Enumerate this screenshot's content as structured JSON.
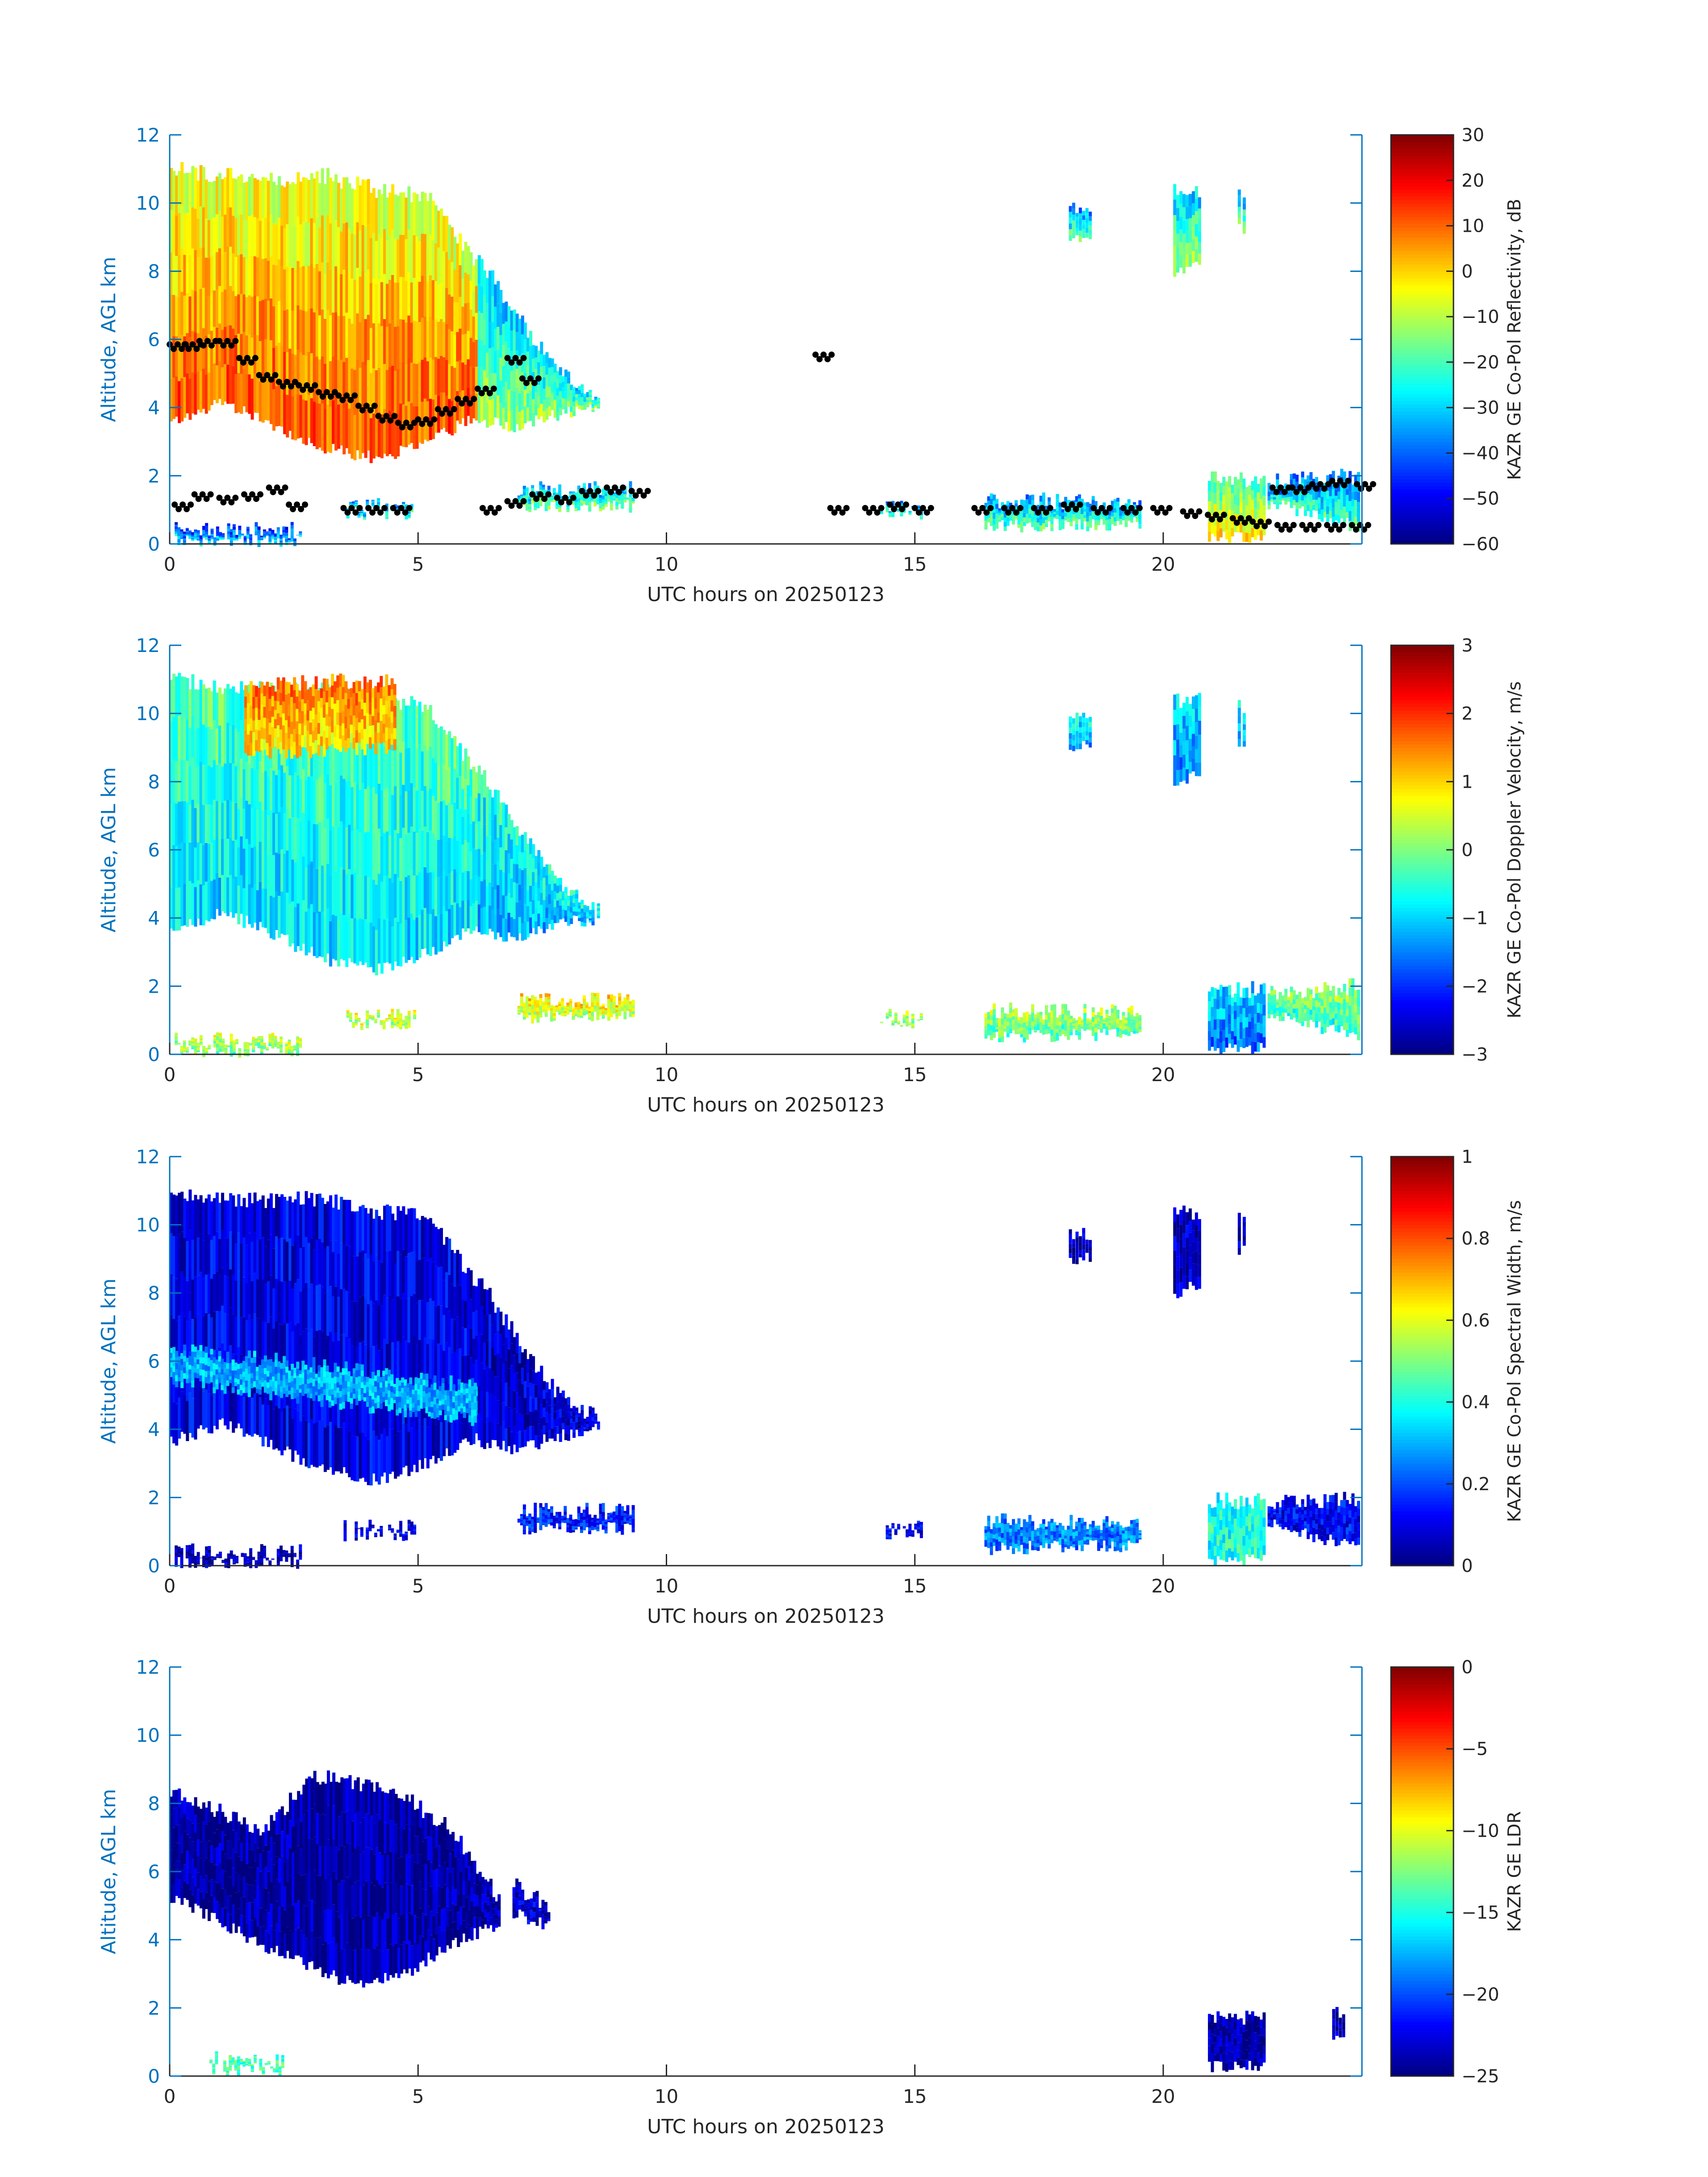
{
  "figure": {
    "date_label": "UTC hours on 20250123"
  },
  "colors": {
    "axis_blue": "#0072bd",
    "text_black": "#262626",
    "melting_layer_marker": "#000000"
  },
  "chart_data": [
    {
      "type": "heatmap",
      "name": "reflectivity",
      "xlabel": "UTC hours on 20250123",
      "ylabel": "Altitude, AGL km",
      "xlim": [
        0,
        24
      ],
      "ylim": [
        0,
        12
      ],
      "xticks": [
        0,
        5,
        10,
        15,
        20
      ],
      "yticks": [
        0,
        2,
        4,
        6,
        8,
        10,
        12
      ],
      "colorbar": {
        "label": "KAZR GE Co-Pol Reflectivity, dB",
        "range": [
          -60,
          30
        ],
        "ticks": [
          -60,
          -50,
          -40,
          -30,
          -20,
          -10,
          0,
          10,
          20,
          30
        ],
        "colormap": "jet"
      },
      "echoes": [
        {
          "t0": 0,
          "t1": 6.2,
          "base": [
            3.6,
            4.2,
            3.5,
            2.8,
            2.5,
            3.0,
            3.8
          ],
          "top": [
            11.0,
            10.8,
            10.7,
            10.8,
            10.4,
            10.2,
            8.2
          ],
          "value": 2
        },
        {
          "t0": 6.2,
          "t1": 8.6,
          "base": [
            3.6,
            3.4,
            3.8,
            4.0
          ],
          "top": [
            8.4,
            6.6,
            5.0,
            4.3
          ],
          "value": -22
        },
        {
          "t0": 18.1,
          "t1": 18.5,
          "base": [
            9.0,
            9.0
          ],
          "top": [
            9.8,
            9.8
          ],
          "value": -28
        },
        {
          "t0": 20.2,
          "t1": 20.7,
          "base": [
            8.0,
            8.2
          ],
          "top": [
            10.4,
            10.4
          ],
          "value": -22
        },
        {
          "t0": 21.5,
          "t1": 21.6,
          "base": [
            9.2,
            9.2
          ],
          "top": [
            10.2,
            10.2
          ],
          "value": -25
        },
        {
          "t0": 0.1,
          "t1": 2.6,
          "base": [
            0.1,
            0.1
          ],
          "top": [
            0.4,
            0.4
          ],
          "value": -38
        },
        {
          "t0": 3.5,
          "t1": 4.9,
          "base": [
            0.9,
            0.9
          ],
          "top": [
            1.1,
            1.1
          ],
          "value": -30
        },
        {
          "t0": 7.0,
          "t1": 9.3,
          "base": [
            1.1,
            1.1
          ],
          "top": [
            1.6,
            1.6
          ],
          "value": -25
        },
        {
          "t0": 14.3,
          "t1": 15.1,
          "base": [
            0.9,
            0.9
          ],
          "top": [
            1.1,
            1.1
          ],
          "value": -28
        },
        {
          "t0": 16.4,
          "t1": 19.5,
          "base": [
            0.5,
            0.6
          ],
          "top": [
            1.3,
            1.2
          ],
          "value": -28
        },
        {
          "t0": 20.9,
          "t1": 22.0,
          "base": [
            0.2,
            0.2
          ],
          "top": [
            1.9,
            1.9
          ],
          "value": -12
        },
        {
          "t0": 22.1,
          "t1": 23.9,
          "base": [
            1.2,
            0.5
          ],
          "top": [
            1.8,
            2.0
          ],
          "value": -30
        }
      ],
      "markers": {
        "description_free": true,
        "x": [
          0.0,
          0.3,
          0.6,
          1.0,
          1.4,
          1.8,
          2.2,
          2.6,
          3.0,
          3.4,
          3.8,
          4.2,
          4.6,
          5.0,
          5.4,
          5.8,
          6.2,
          6.8,
          7.1,
          0.1,
          0.5,
          1.0,
          1.5,
          2.0,
          2.4,
          3.5,
          4.0,
          4.5,
          6.3,
          6.8,
          7.3,
          7.8,
          8.3,
          8.8,
          9.3,
          13.0,
          13.3,
          14.0,
          14.5,
          15.0,
          16.2,
          16.8,
          17.4,
          18.0,
          18.6,
          19.2,
          19.8,
          20.4,
          20.9,
          21.4,
          21.8,
          22.3,
          22.8,
          23.3,
          23.8,
          22.2,
          22.6,
          23.0,
          23.4,
          23.9
        ],
        "y": [
          5.8,
          5.8,
          5.9,
          5.9,
          5.4,
          4.9,
          4.7,
          4.6,
          4.4,
          4.3,
          4.0,
          3.7,
          3.5,
          3.6,
          3.9,
          4.2,
          4.5,
          5.4,
          4.8,
          1.1,
          1.4,
          1.3,
          1.4,
          1.6,
          1.1,
          1.0,
          1.0,
          1.0,
          1.0,
          1.2,
          1.4,
          1.3,
          1.5,
          1.6,
          1.5,
          5.5,
          1.0,
          1.0,
          1.1,
          1.0,
          1.0,
          1.0,
          1.0,
          1.1,
          1.0,
          1.0,
          1.0,
          0.9,
          0.8,
          0.7,
          0.6,
          0.5,
          0.5,
          0.5,
          0.5,
          1.6,
          1.6,
          1.7,
          1.8,
          1.7
        ]
      }
    },
    {
      "type": "heatmap",
      "name": "doppler-velocity",
      "xlabel": "UTC hours on 20250123",
      "ylabel": "Altitude, AGL km",
      "xlim": [
        0,
        24
      ],
      "ylim": [
        0,
        12
      ],
      "xticks": [
        0,
        5,
        10,
        15,
        20
      ],
      "yticks": [
        0,
        2,
        4,
        6,
        8,
        10,
        12
      ],
      "colorbar": {
        "label": "KAZR GE Co-Pol Doppler Velocity, m/s",
        "range": [
          -3,
          3
        ],
        "ticks": [
          -3,
          -2,
          -1,
          0,
          1,
          2,
          3
        ],
        "colormap": "jet"
      },
      "echoes": [
        {
          "t0": 0,
          "t1": 6.2,
          "base": [
            3.6,
            4.2,
            3.5,
            2.8,
            2.5,
            3.0,
            3.8
          ],
          "top": [
            11.0,
            10.8,
            10.7,
            10.8,
            10.4,
            10.2,
            8.2
          ],
          "value": -0.6
        },
        {
          "t0": 1.5,
          "t1": 4.5,
          "base": [
            8.8,
            9.0
          ],
          "top": [
            10.8,
            11.0
          ],
          "value": 1.2
        },
        {
          "t0": 6.2,
          "t1": 8.6,
          "base": [
            3.6,
            3.4,
            3.8,
            4.0
          ],
          "top": [
            8.4,
            6.6,
            5.0,
            4.3
          ],
          "value": -0.9
        },
        {
          "t0": 18.1,
          "t1": 18.5,
          "base": [
            9.0,
            9.0
          ],
          "top": [
            9.8,
            9.8
          ],
          "value": -1.0
        },
        {
          "t0": 20.2,
          "t1": 20.7,
          "base": [
            8.0,
            8.2
          ],
          "top": [
            10.4,
            10.4
          ],
          "value": -1.2
        },
        {
          "t0": 21.5,
          "t1": 21.6,
          "base": [
            9.2,
            9.2
          ],
          "top": [
            10.2,
            10.2
          ],
          "value": -1.0
        },
        {
          "t0": 0.1,
          "t1": 2.6,
          "base": [
            0.1,
            0.1
          ],
          "top": [
            0.4,
            0.4
          ],
          "value": 0.2
        },
        {
          "t0": 3.5,
          "t1": 4.9,
          "base": [
            0.9,
            0.9
          ],
          "top": [
            1.1,
            1.1
          ],
          "value": 0.4
        },
        {
          "t0": 7.0,
          "t1": 9.3,
          "base": [
            1.1,
            1.1
          ],
          "top": [
            1.6,
            1.6
          ],
          "value": 0.6
        },
        {
          "t0": 14.3,
          "t1": 15.1,
          "base": [
            0.9,
            0.9
          ],
          "top": [
            1.1,
            1.1
          ],
          "value": 0.2
        },
        {
          "t0": 16.4,
          "t1": 19.5,
          "base": [
            0.5,
            0.6
          ],
          "top": [
            1.3,
            1.2
          ],
          "value": 0.0
        },
        {
          "t0": 20.9,
          "t1": 22.0,
          "base": [
            0.2,
            0.2
          ],
          "top": [
            1.9,
            1.9
          ],
          "value": -1.3
        },
        {
          "t0": 22.1,
          "t1": 23.9,
          "base": [
            1.2,
            0.5
          ],
          "top": [
            1.8,
            2.0
          ],
          "value": -0.2
        }
      ]
    },
    {
      "type": "heatmap",
      "name": "spectral-width",
      "xlabel": "UTC hours on 20250123",
      "ylabel": "Altitude, AGL km",
      "xlim": [
        0,
        24
      ],
      "ylim": [
        0,
        12
      ],
      "xticks": [
        0,
        5,
        10,
        15,
        20
      ],
      "yticks": [
        0,
        2,
        4,
        6,
        8,
        10,
        12
      ],
      "colorbar": {
        "label": "KAZR GE Co-Pol Spectral Width, m/s",
        "range": [
          0,
          1
        ],
        "ticks": [
          0,
          0.2,
          0.4,
          0.6,
          0.8,
          1
        ],
        "colormap": "jet"
      },
      "echoes": [
        {
          "t0": 0,
          "t1": 6.2,
          "base": [
            3.6,
            4.2,
            3.5,
            2.8,
            2.5,
            3.0,
            3.8
          ],
          "top": [
            11.0,
            10.8,
            10.7,
            10.8,
            10.4,
            10.2,
            8.2
          ],
          "value": 0.1
        },
        {
          "t0": 0,
          "t1": 6.5,
          "base": [
            5.4,
            4.8,
            4.2
          ],
          "top": [
            6.4,
            5.8,
            5.2
          ],
          "value": 0.3
        },
        {
          "t0": 6.2,
          "t1": 8.6,
          "base": [
            3.6,
            3.4,
            3.8,
            4.0
          ],
          "top": [
            8.4,
            6.6,
            5.0,
            4.3
          ],
          "value": 0.08
        },
        {
          "t0": 18.1,
          "t1": 18.5,
          "base": [
            9.0,
            9.0
          ],
          "top": [
            9.8,
            9.8
          ],
          "value": 0.06
        },
        {
          "t0": 20.2,
          "t1": 20.7,
          "base": [
            8.0,
            8.2
          ],
          "top": [
            10.4,
            10.4
          ],
          "value": 0.06
        },
        {
          "t0": 21.5,
          "t1": 21.6,
          "base": [
            9.2,
            9.2
          ],
          "top": [
            10.2,
            10.2
          ],
          "value": 0.08
        },
        {
          "t0": 0.1,
          "t1": 2.6,
          "base": [
            0.1,
            0.1
          ],
          "top": [
            0.4,
            0.4
          ],
          "value": 0.06
        },
        {
          "t0": 3.5,
          "t1": 4.9,
          "base": [
            0.9,
            0.9
          ],
          "top": [
            1.1,
            1.1
          ],
          "value": 0.1
        },
        {
          "t0": 7.0,
          "t1": 9.3,
          "base": [
            1.1,
            1.1
          ],
          "top": [
            1.6,
            1.6
          ],
          "value": 0.15
        },
        {
          "t0": 14.3,
          "t1": 15.1,
          "base": [
            0.9,
            0.9
          ],
          "top": [
            1.1,
            1.1
          ],
          "value": 0.1
        },
        {
          "t0": 16.4,
          "t1": 19.5,
          "base": [
            0.5,
            0.6
          ],
          "top": [
            1.3,
            1.2
          ],
          "value": 0.25
        },
        {
          "t0": 20.9,
          "t1": 22.0,
          "base": [
            0.2,
            0.2
          ],
          "top": [
            1.9,
            1.9
          ],
          "value": 0.4
        },
        {
          "t0": 22.1,
          "t1": 23.9,
          "base": [
            1.2,
            0.5
          ],
          "top": [
            1.8,
            2.0
          ],
          "value": 0.12
        }
      ]
    },
    {
      "type": "heatmap",
      "name": "ldr",
      "xlabel": "UTC hours on 20250123",
      "ylabel": "Altitude, AGL km",
      "xlim": [
        0,
        24
      ],
      "ylim": [
        0,
        12
      ],
      "xticks": [
        0,
        5,
        10,
        15,
        20
      ],
      "yticks": [
        0,
        2,
        4,
        6,
        8,
        10,
        12
      ],
      "colorbar": {
        "label": "KAZR GE LDR",
        "range": [
          -25,
          0
        ],
        "ticks": [
          -25,
          -20,
          -15,
          -10,
          -5,
          0
        ],
        "colormap": "jet"
      },
      "echoes": [
        {
          "t0": 0,
          "t1": 6.6,
          "base": [
            5.2,
            4.6,
            3.8,
            3.2,
            2.6,
            3.0,
            3.9,
            4.4
          ],
          "top": [
            8.3,
            7.8,
            7.2,
            8.8,
            8.6,
            8.2,
            7.2,
            5.2
          ],
          "value": -24
        },
        {
          "t0": 6.9,
          "t1": 7.6,
          "base": [
            4.8,
            4.4
          ],
          "top": [
            5.6,
            5.0
          ],
          "value": -23
        },
        {
          "t0": 0.8,
          "t1": 2.3,
          "base": [
            0.2,
            0.2
          ],
          "top": [
            0.5,
            0.4
          ],
          "value": -14
        },
        {
          "t0": 20.9,
          "t1": 22.0,
          "base": [
            0.3,
            0.3
          ],
          "top": [
            1.8,
            1.7
          ],
          "value": -24
        },
        {
          "t0": 23.4,
          "t1": 23.6,
          "base": [
            1.0,
            1.0
          ],
          "top": [
            1.9,
            1.9
          ],
          "value": -24
        }
      ]
    }
  ]
}
